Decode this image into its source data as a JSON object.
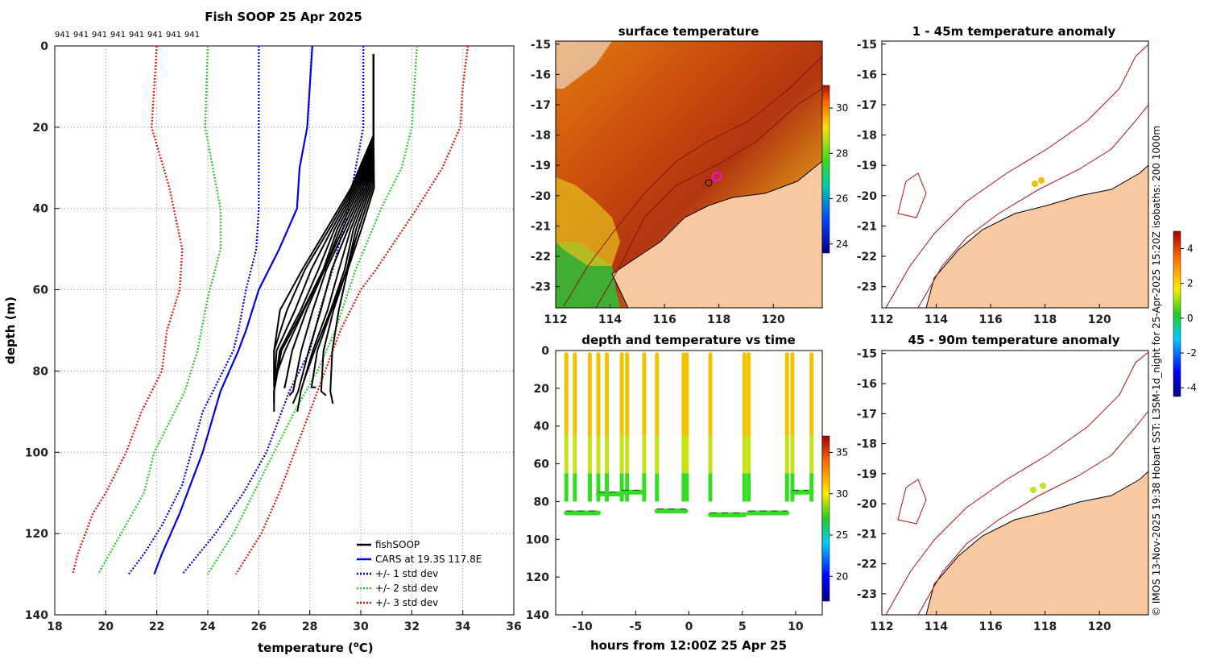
{
  "profile": {
    "title": "Fish SOOP 25 Apr 2025",
    "top_labels": [
      "941",
      "941",
      "941",
      "941",
      "941",
      "941",
      "941",
      "941"
    ],
    "xlabel": "temperature (",
    "xlabel_sup": "o",
    "xlabel_end": "C)",
    "ylabel": "depth (m)",
    "x_ticks": [
      "18",
      "20",
      "22",
      "24",
      "26",
      "28",
      "30",
      "32",
      "34",
      "36"
    ],
    "y_ticks": [
      "0",
      "20",
      "40",
      "60",
      "80",
      "100",
      "120",
      "140"
    ],
    "legend": [
      "fishSOOP",
      "CARS at 19.3S 117.8E",
      "+/- 1 std dev",
      "+/- 2 std dev",
      "+/- 3 std dev"
    ]
  },
  "sst_map": {
    "title": "surface temperature",
    "x_ticks": [
      "112",
      "114",
      "116",
      "118",
      "120"
    ],
    "y_ticks": [
      "-15",
      "-16",
      "-17",
      "-18",
      "-19",
      "-20",
      "-21",
      "-22",
      "-23"
    ],
    "colorbar_ticks": [
      "30",
      "28",
      "26",
      "24"
    ]
  },
  "time_plot": {
    "title": "depth and temperature vs time",
    "xlabel": "hours from 12:00Z 25 Apr 25",
    "x_ticks": [
      "-10",
      "-5",
      "0",
      "5",
      "10"
    ],
    "y_ticks": [
      "0",
      "20",
      "40",
      "60",
      "80",
      "100",
      "120",
      "140"
    ],
    "colorbar_ticks": [
      "35",
      "30",
      "25",
      "20"
    ]
  },
  "anom1": {
    "title": "1 - 45m temperature anomaly",
    "x_ticks": [
      "112",
      "114",
      "116",
      "118",
      "120"
    ],
    "y_ticks": [
      "-15",
      "-16",
      "-17",
      "-18",
      "-19",
      "-20",
      "-21",
      "-22",
      "-23"
    ]
  },
  "anom2": {
    "title": "45 - 90m temperature anomaly",
    "x_ticks": [
      "112",
      "114",
      "116",
      "118",
      "120"
    ],
    "y_ticks": [
      "-15",
      "-16",
      "-17",
      "-18",
      "-19",
      "-20",
      "-21",
      "-22",
      "-23"
    ]
  },
  "anom_colorbar_ticks": [
    "4",
    "2",
    "0",
    "-2",
    "-4"
  ],
  "credit": "© IMOS 13-Nov-2025 19:38 Hobart SST: L3SM-1d_night for 25-Apr-2025 15:20Z isobaths: 200  1000m",
  "colors": {
    "fish": "#000000",
    "cars": "#0000ee",
    "std1": "#0000ee",
    "std2": "#22cc22",
    "std3": "#ee1100",
    "land": "#f8c9a0"
  },
  "chart_data": [
    {
      "type": "line",
      "title": "Fish SOOP 25 Apr 2025",
      "xlabel": "temperature (oC)",
      "ylabel": "depth (m)",
      "xlim": [
        18,
        36
      ],
      "ylim": [
        140,
        0
      ],
      "series": [
        {
          "name": "CARS at 19.3S 117.8E",
          "points": [
            [
              28.1,
              0
            ],
            [
              27.9,
              20
            ],
            [
              27.6,
              30
            ],
            [
              27.5,
              40
            ],
            [
              26.8,
              50
            ],
            [
              26.0,
              60
            ],
            [
              25.5,
              70
            ],
            [
              25.2,
              75
            ],
            [
              24.5,
              85
            ],
            [
              23.8,
              100
            ],
            [
              22.9,
              115
            ],
            [
              22.2,
              125
            ],
            [
              21.9,
              130
            ]
          ]
        },
        {
          "name": "+/- 1 std dev low",
          "points": [
            [
              26.0,
              0
            ],
            [
              26.0,
              20
            ],
            [
              26.0,
              40
            ],
            [
              25.9,
              50
            ],
            [
              25.5,
              60
            ],
            [
              25.2,
              70
            ],
            [
              25.0,
              75
            ],
            [
              23.8,
              90
            ],
            [
              23.0,
              108
            ],
            [
              22.2,
              118
            ],
            [
              21.5,
              125
            ],
            [
              20.9,
              130
            ]
          ]
        },
        {
          "name": "+/- 1 std dev high",
          "points": [
            [
              30.1,
              0
            ],
            [
              30.1,
              20
            ],
            [
              29.8,
              30
            ],
            [
              29.5,
              40
            ],
            [
              28.9,
              55
            ],
            [
              28.4,
              65
            ],
            [
              28.0,
              75
            ],
            [
              27.2,
              85
            ],
            [
              26.3,
              100
            ],
            [
              25.4,
              110
            ],
            [
              24.3,
              120
            ],
            [
              23.0,
              130
            ]
          ]
        },
        {
          "name": "+/- 2 std dev low",
          "points": [
            [
              24.0,
              0
            ],
            [
              23.9,
              20
            ],
            [
              24.2,
              30
            ],
            [
              24.5,
              40
            ],
            [
              24.5,
              50
            ],
            [
              24.0,
              62
            ],
            [
              23.6,
              75
            ],
            [
              23.1,
              85
            ],
            [
              21.9,
              100
            ],
            [
              21.5,
              110
            ],
            [
              20.6,
              120
            ],
            [
              19.7,
              130
            ]
          ]
        },
        {
          "name": "+/- 2 std dev high",
          "points": [
            [
              32.2,
              0
            ],
            [
              32.0,
              20
            ],
            [
              31.6,
              30
            ],
            [
              30.8,
              40
            ],
            [
              29.8,
              55
            ],
            [
              29.0,
              70
            ],
            [
              28.3,
              80
            ],
            [
              27.4,
              90
            ],
            [
              26.6,
              100
            ],
            [
              25.8,
              110
            ],
            [
              25.0,
              120
            ],
            [
              24.0,
              130
            ]
          ]
        },
        {
          "name": "+/- 3 std dev low",
          "points": [
            [
              22.0,
              0
            ],
            [
              21.8,
              20
            ],
            [
              22.5,
              35
            ],
            [
              23.0,
              50
            ],
            [
              22.9,
              60
            ],
            [
              22.4,
              70
            ],
            [
              22.2,
              80
            ],
            [
              21.4,
              90
            ],
            [
              20.8,
              100
            ],
            [
              20.0,
              110
            ],
            [
              19.5,
              115
            ],
            [
              18.9,
              125
            ],
            [
              18.7,
              130
            ]
          ]
        },
        {
          "name": "+/- 3 std dev high",
          "points": [
            [
              34.2,
              0
            ],
            [
              34.0,
              10
            ],
            [
              33.9,
              20
            ],
            [
              33.2,
              30
            ],
            [
              32.2,
              40
            ],
            [
              30.6,
              55
            ],
            [
              30.0,
              60
            ],
            [
              29.2,
              70
            ],
            [
              28.6,
              80
            ],
            [
              28.0,
              90
            ],
            [
              27.4,
              100
            ],
            [
              26.8,
              110
            ],
            [
              26.1,
              120
            ],
            [
              25.1,
              130
            ]
          ]
        },
        {
          "name": "fishSOOP",
          "range_temp": [
            26.6,
            30.6
          ],
          "range_depth": [
            2,
            90
          ]
        }
      ]
    },
    {
      "type": "scatter",
      "title": "depth and temperature vs time",
      "xlabel": "hours from 12:00Z 25 Apr 25",
      "ylabel": "",
      "xlim": [
        -12.5,
        12.5
      ],
      "ylim": [
        140,
        0
      ],
      "profile_times": [
        -11.5,
        -10.7,
        -9.3,
        -8.5,
        -7.7,
        -6.3,
        -5.8,
        -4.2,
        -3.0,
        -0.5,
        -0.2,
        2.0,
        5.2,
        5.6,
        9.2,
        9.7,
        11.5
      ],
      "bottom_depths": [
        [
          -11.5,
          -8.5,
          86
        ],
        [
          -8.5,
          -6.3,
          76
        ],
        [
          -6.3,
          -4.5,
          75
        ],
        [
          -3.0,
          -0.3,
          85
        ],
        [
          2.0,
          5.2,
          87
        ],
        [
          5.6,
          9.2,
          86
        ],
        [
          9.7,
          11.2,
          75
        ]
      ]
    }
  ]
}
